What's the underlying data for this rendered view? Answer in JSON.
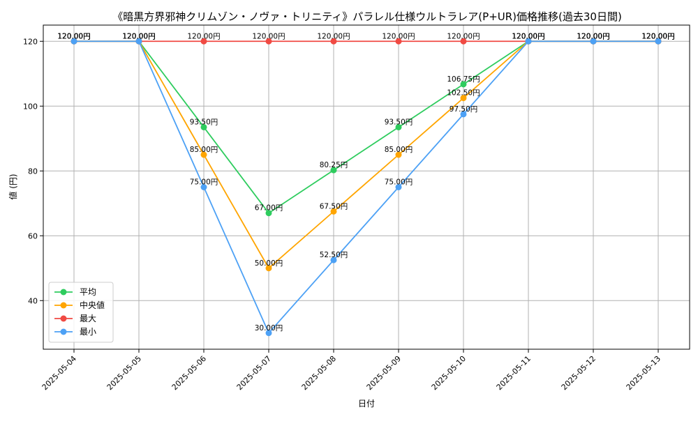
{
  "chart_data": {
    "type": "line",
    "title": "《暗黒方界邪神クリムゾン・ノヴァ・トリニティ》パラレル仕様ウルトラレア(P+UR)価格推移(過去30日間)",
    "xlabel": "日付",
    "ylabel": "値 (円)",
    "categories": [
      "2025-05-04",
      "2025-05-05",
      "2025-05-06",
      "2025-05-07",
      "2025-05-08",
      "2025-05-09",
      "2025-05-10",
      "2025-05-11",
      "2025-05-12",
      "2025-05-13"
    ],
    "ylim": [
      25,
      125
    ],
    "yticks": [
      40,
      60,
      80,
      100,
      120
    ],
    "grid": true,
    "legend_position": "lower-left",
    "value_suffix": "円",
    "series": [
      {
        "name": "平均",
        "color": "#2ecc5e",
        "values": [
          120,
          120,
          93.5,
          67,
          80.25,
          93.5,
          106.75,
          120,
          120,
          120
        ]
      },
      {
        "name": "中央値",
        "color": "#ffa500",
        "values": [
          120,
          120,
          85,
          50,
          67.5,
          85,
          102.5,
          120,
          120,
          120
        ]
      },
      {
        "name": "最大",
        "color": "#f04a43",
        "values": [
          120,
          120,
          120,
          120,
          120,
          120,
          120,
          120,
          120,
          120
        ]
      },
      {
        "name": "最小",
        "color": "#4da1f5",
        "values": [
          120,
          120,
          75,
          30,
          52.5,
          75,
          97.5,
          120,
          120,
          120
        ]
      }
    ]
  }
}
